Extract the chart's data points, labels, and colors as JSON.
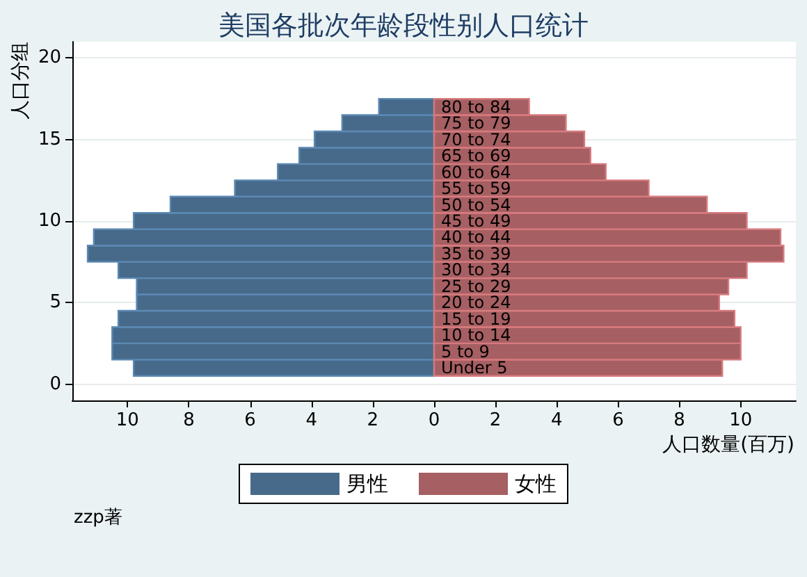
{
  "chart_data": {
    "type": "bar",
    "orientation": "horizontal",
    "title": "美国各批次年龄段性别人口统计",
    "xlabel": "人口数量(百万)",
    "ylabel": "人口分组",
    "x": [
      1,
      2,
      3,
      4,
      5,
      6,
      7,
      8,
      9,
      10,
      11,
      12,
      13,
      14,
      15,
      16,
      17
    ],
    "stacked": true,
    "series": [
      {
        "name": "男性",
        "color": "#476a8a",
        "values": [
          -9.8,
          -10.5,
          -10.5,
          -10.3,
          -9.7,
          -9.7,
          -10.3,
          -11.3,
          -11.1,
          -9.8,
          -8.6,
          -6.5,
          -5.1,
          -4.4,
          -3.9,
          -3.0,
          -1.8
        ]
      },
      {
        "name": "女性",
        "color": "#a65f62",
        "values": [
          9.4,
          10.0,
          10.0,
          9.8,
          9.3,
          9.6,
          10.2,
          11.4,
          11.3,
          10.2,
          8.9,
          7.0,
          5.6,
          5.1,
          4.9,
          4.3,
          3.1
        ]
      }
    ],
    "xlim": [
      -11.8,
      11.8
    ],
    "xticks": [
      {
        "value": -10,
        "label": "10"
      },
      {
        "value": -8,
        "label": "8"
      },
      {
        "value": -6,
        "label": "6"
      },
      {
        "value": -4,
        "label": "4"
      },
      {
        "value": -2,
        "label": "2"
      },
      0,
      2,
      4,
      6,
      8,
      10
    ],
    "ylim": [
      -1,
      21
    ],
    "yticks": [
      0,
      5,
      10,
      15,
      20
    ],
    "grid": "y",
    "legend": "bottom",
    "annotations": [
      "Under 5",
      "5 to 9",
      "10 to 14",
      "15 to 19",
      "20 to 24",
      "25 to 29",
      "30 to 34",
      "35 to 39",
      "40 to 44",
      "45 to 49",
      "50 to 54",
      "55 to 59",
      "60 to 64",
      "65 to 69",
      "70 to 74",
      "75 to 79",
      "80 to 84",
      "zzp著"
    ]
  }
}
